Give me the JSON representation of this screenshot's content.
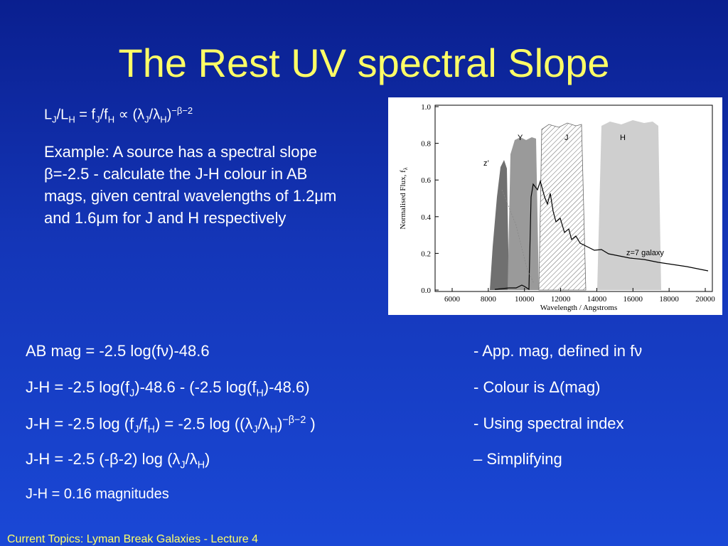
{
  "title": "The Rest UV spectral Slope",
  "formula": [
    "L",
    "J",
    "/L",
    "H",
    " = f",
    "J",
    "/f",
    "H",
    " ∝ (λ",
    "J",
    "/λ",
    "H",
    ")",
    "−β−2"
  ],
  "example": "Example: A source has a spectral slope β=-2.5 - calculate the J-H colour in AB mags, given central wavelengths of 1.2μm and 1.6μm for J and H respectively",
  "figure": {
    "y_axis_label": [
      "Normalised Flux, f",
      "λ"
    ],
    "x_axis_label": "Wavelength / Angstroms",
    "xticks": [
      6000,
      8000,
      10000,
      12000,
      14000,
      16000,
      18000,
      20000
    ],
    "yticks": [
      "0.0",
      "0.2",
      "0.4",
      "0.6",
      "0.8",
      "1.0"
    ],
    "bands": [
      "z’",
      "Y",
      "J",
      "H"
    ],
    "galaxy_label": "z=7 galaxy"
  },
  "equations": [
    [
      "AB mag = -2.5 log(fν)-48.6"
    ],
    [
      "J-H = -2.5 log(f",
      "J",
      ")-48.6 - (-2.5 log(f",
      "H",
      ")-48.6)"
    ],
    [
      "J-H = -2.5 log (f",
      "J",
      "/f",
      "H",
      ") = -2.5 log ((λ",
      "J",
      "/λ",
      "H",
      ")",
      "−β−2",
      " )"
    ],
    [
      "J-H = -2.5 (-β-2) log (λ",
      "J",
      "/λ",
      "H",
      ")"
    ],
    [
      "J-H = 0.16 magnitudes"
    ]
  ],
  "notes": [
    "- App. mag, defined in fν",
    "- Colour is Δ(mag)",
    "- Using spectral index",
    "– Simplifying"
  ],
  "footer": "Current Topics:  Lyman Break Galaxies - Lecture 4"
}
